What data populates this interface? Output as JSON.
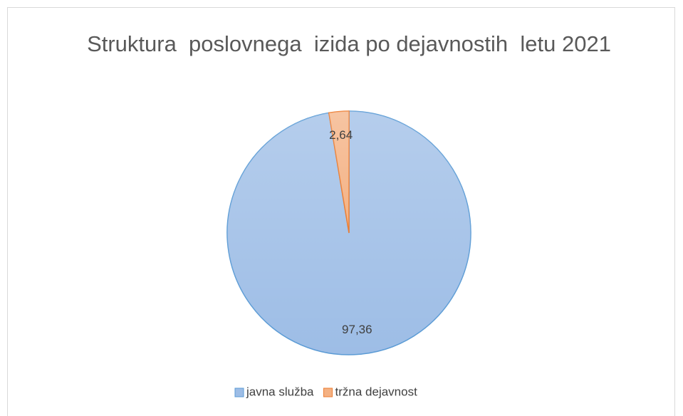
{
  "chart_data": {
    "type": "pie",
    "title": "Struktura  poslovnega  izida po dejavnostih  letu 2021",
    "categories": [
      "javna služba",
      "tržna dejavnost"
    ],
    "values": [
      97.36,
      2.64
    ],
    "value_labels": [
      "97,36",
      "2,64"
    ],
    "colors": [
      "#9dbde6",
      "#f4b183"
    ],
    "edge_colors": [
      "#5b9bd5",
      "#ed7d31"
    ],
    "legend": "bottom"
  }
}
